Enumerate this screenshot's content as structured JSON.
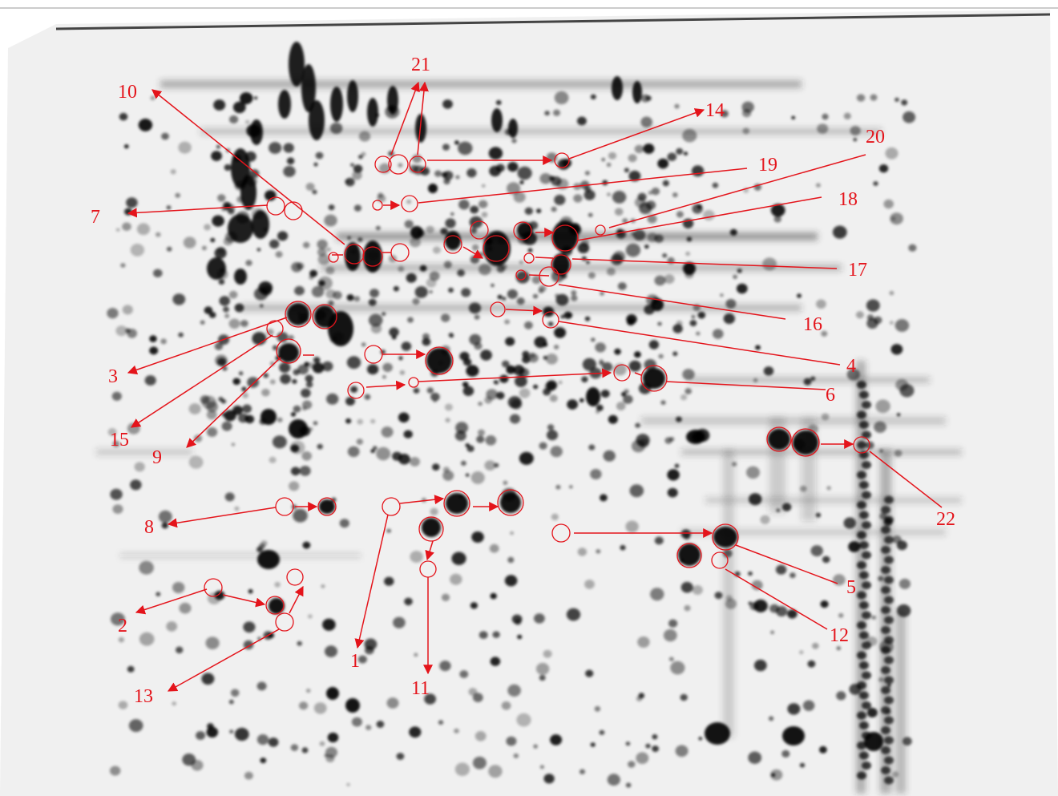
{
  "figure": {
    "kind": "2D electrophoresis gel with annotated protein spots",
    "annotation_color": "#e4141b",
    "spot_color": "#000000",
    "background_color": "#f1f1f1",
    "labels": [
      "1",
      "2",
      "3",
      "4",
      "5",
      "6",
      "7",
      "8",
      "9",
      "10",
      "11",
      "12",
      "13",
      "14",
      "15",
      "16",
      "17",
      "18",
      "19",
      "20",
      "21",
      "22"
    ]
  }
}
